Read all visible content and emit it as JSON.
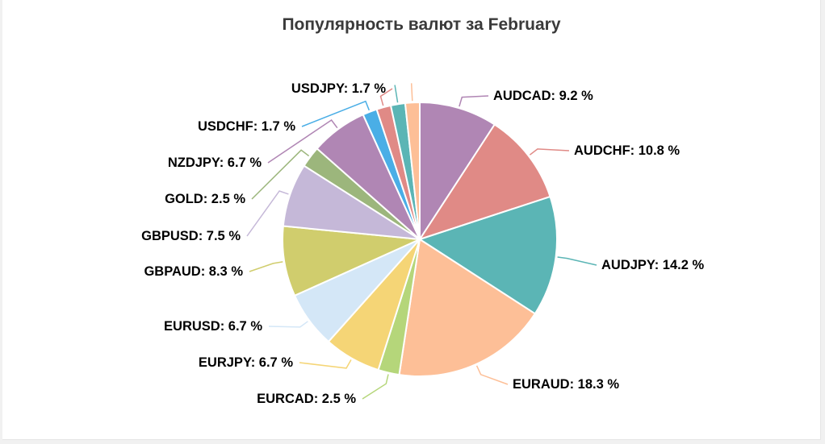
{
  "chart_data": {
    "type": "pie",
    "title": "Популярность валют за February",
    "label_suffix": " %",
    "slices": [
      {
        "name": "AUDCAD",
        "value": 9.2,
        "color": "#b086b4"
      },
      {
        "name": "AUDCHF",
        "value": 10.8,
        "color": "#e08a86"
      },
      {
        "name": "AUDJPY",
        "value": 14.2,
        "color": "#5bb5b5"
      },
      {
        "name": "EURAUD",
        "value": 18.3,
        "color": "#fdbf97"
      },
      {
        "name": "EURCAD",
        "value": 2.5,
        "color": "#b5d67a"
      },
      {
        "name": "EURJPY",
        "value": 6.7,
        "color": "#f5d576"
      },
      {
        "name": "EURUSD",
        "value": 6.7,
        "color": "#d4e7f7"
      },
      {
        "name": "GBPAUD",
        "value": 8.3,
        "color": "#d0cd6d"
      },
      {
        "name": "GBPUSD",
        "value": 7.5,
        "color": "#c5b8d8"
      },
      {
        "name": "GOLD",
        "value": 2.5,
        "color": "#9cb67c"
      },
      {
        "name": "NZDJPY",
        "value": 6.7,
        "color": "#b086b4"
      },
      {
        "name": "USDCHF",
        "value": 1.7,
        "color": "#4aaee6"
      },
      {
        "name": "USDJPY",
        "value": 1.7,
        "color": "#e08a86"
      },
      {
        "name": "",
        "value": 1.7,
        "color": "#5bb5b5"
      },
      {
        "name": "",
        "value": 1.7,
        "color": "#fdbf97"
      }
    ]
  }
}
